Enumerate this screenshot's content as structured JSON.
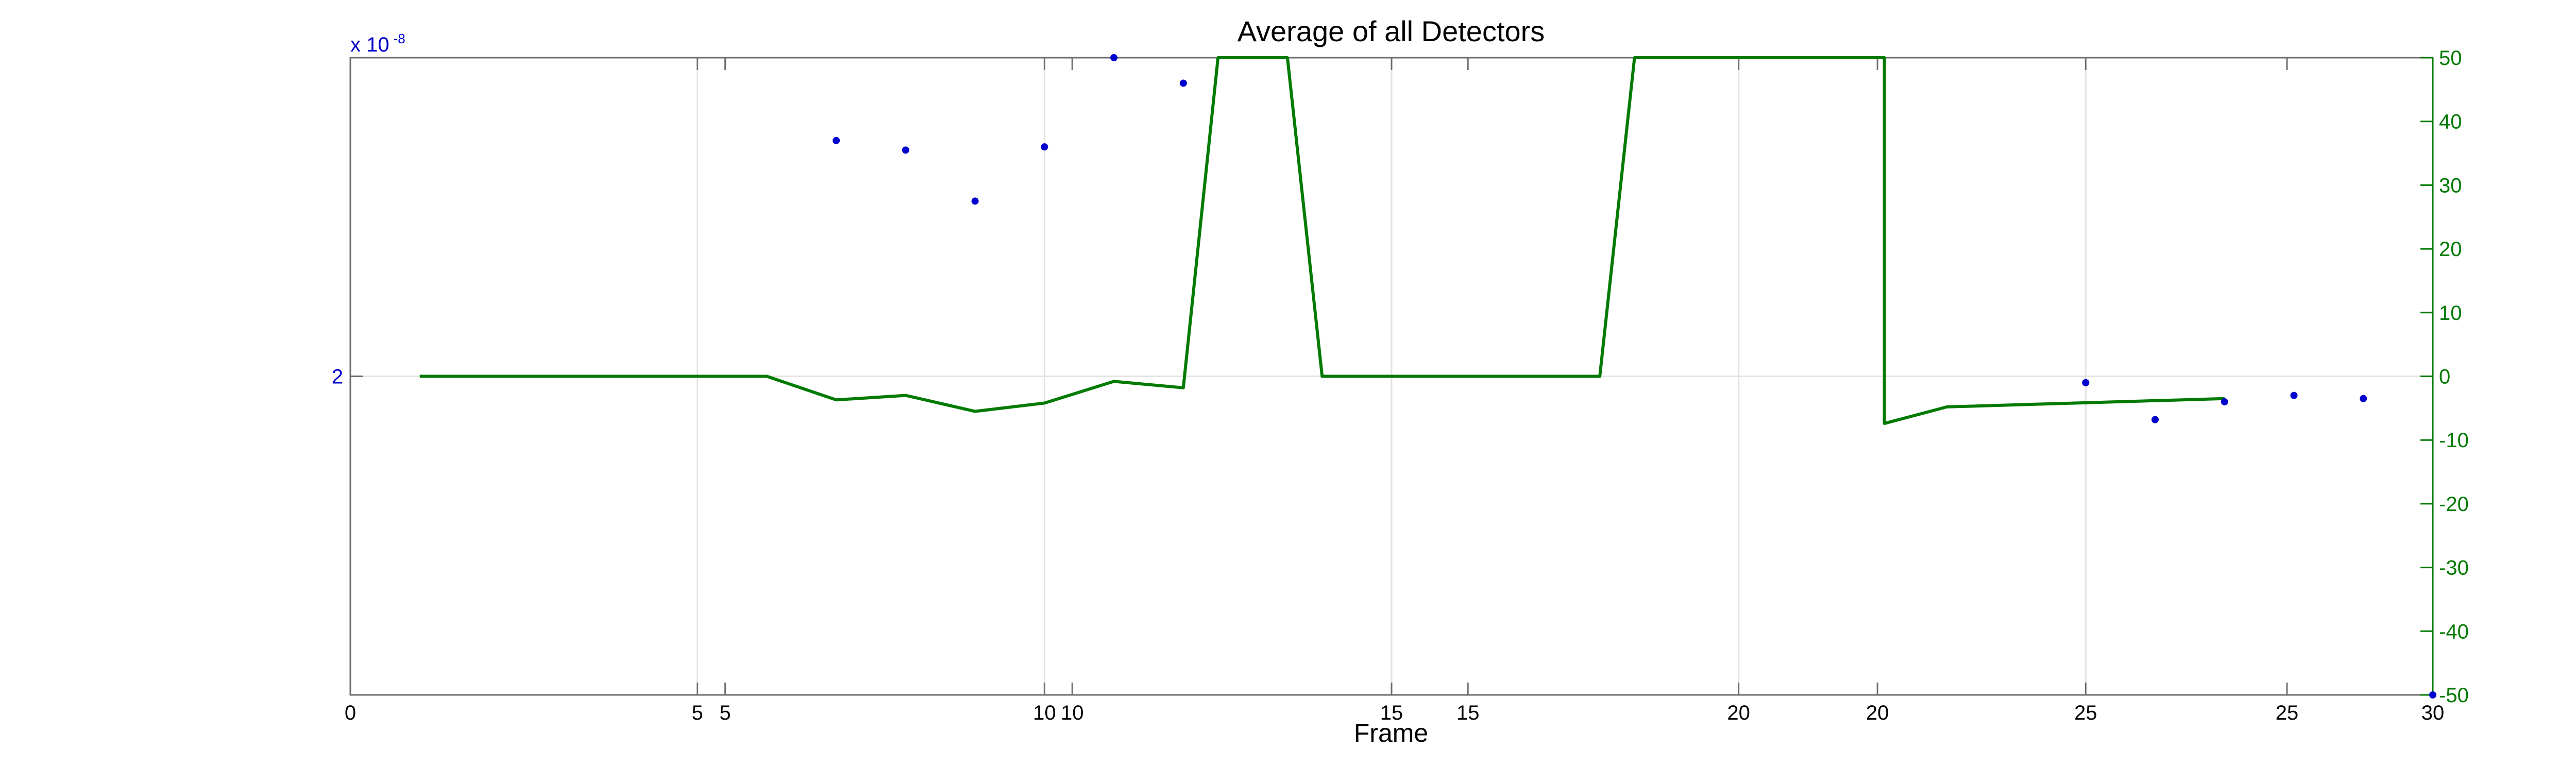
{
  "chart_data": {
    "type": "line",
    "title": "Average of all Detectors",
    "xlabel": "Frame",
    "x_axis_primary": {
      "range": [
        0,
        30
      ],
      "ticks": [
        0,
        5,
        10,
        15,
        20,
        25,
        30
      ]
    },
    "x_axis_secondary": {
      "range": [
        0,
        30
      ],
      "ticks": [
        5,
        10,
        15,
        20,
        25
      ],
      "offset_ticks_pos": [
        5.4,
        10.4,
        16.1,
        22.0,
        27.9
      ]
    },
    "y_left": {
      "exponent_label": "x 10",
      "exponent": "-8",
      "ticks": [
        {
          "label": "2",
          "value": 0
        }
      ]
    },
    "y_right": {
      "range": [
        -50,
        50
      ],
      "ticks": [
        50,
        40,
        30,
        20,
        10,
        0,
        -10,
        -20,
        -30,
        -40,
        -50
      ]
    },
    "grid": true,
    "colors": {
      "line": "#007a00",
      "points": "#0000cc",
      "right_axis": "#007a00",
      "left_axis": "#0000cc"
    },
    "series": [
      {
        "style": "line",
        "axis": "right",
        "x": [
          1,
          6,
          7,
          8,
          9,
          10,
          11,
          12,
          12.5,
          13.5,
          14,
          18,
          18.5,
          22.1,
          22.1,
          23,
          27
        ],
        "y": [
          0,
          0,
          -3.7,
          -3,
          -5.5,
          -4.2,
          -0.8,
          -1.8,
          50,
          50,
          0,
          0,
          50,
          50,
          -7.4,
          -4.8,
          -3.5
        ]
      },
      {
        "style": "scatter",
        "axis": "right",
        "x": [
          7,
          8,
          9,
          10,
          11,
          12,
          25,
          26,
          27,
          28,
          29,
          30
        ],
        "y": [
          37,
          35.5,
          27.5,
          36,
          50,
          46,
          -1,
          -6.8,
          -4,
          -3,
          -3.5,
          -50
        ]
      }
    ]
  }
}
